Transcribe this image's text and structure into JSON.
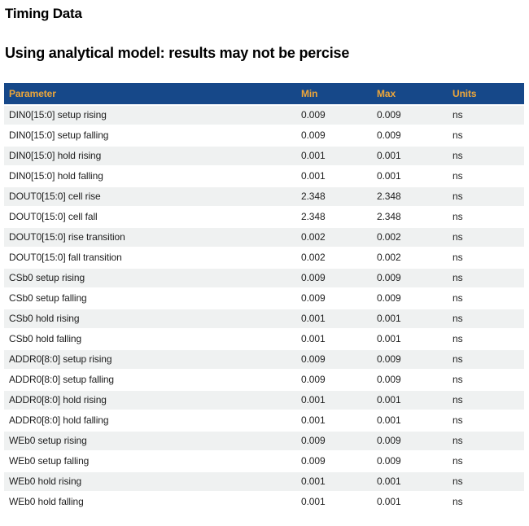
{
  "page": {
    "title": "Timing Data",
    "subtitle": "Using analytical model: results may not be percise"
  },
  "colors": {
    "header_bg": "#164889",
    "header_text": "#eda63a",
    "row_alt_bg": "#eff1f1",
    "body_text": "#1e1e1e"
  },
  "table": {
    "columns": [
      "Parameter",
      "Min",
      "Max",
      "Units"
    ],
    "rows": [
      {
        "parameter": "DIN0[15:0] setup rising",
        "min": "0.009",
        "max": "0.009",
        "units": "ns"
      },
      {
        "parameter": "DIN0[15:0] setup falling",
        "min": "0.009",
        "max": "0.009",
        "units": "ns"
      },
      {
        "parameter": "DIN0[15:0] hold rising",
        "min": "0.001",
        "max": "0.001",
        "units": "ns"
      },
      {
        "parameter": "DIN0[15:0] hold falling",
        "min": "0.001",
        "max": "0.001",
        "units": "ns"
      },
      {
        "parameter": "DOUT0[15:0] cell rise",
        "min": "2.348",
        "max": "2.348",
        "units": "ns"
      },
      {
        "parameter": "DOUT0[15:0] cell fall",
        "min": "2.348",
        "max": "2.348",
        "units": "ns"
      },
      {
        "parameter": "DOUT0[15:0] rise transition",
        "min": "0.002",
        "max": "0.002",
        "units": "ns"
      },
      {
        "parameter": "DOUT0[15:0] fall transition",
        "min": "0.002",
        "max": "0.002",
        "units": "ns"
      },
      {
        "parameter": "CSb0 setup rising",
        "min": "0.009",
        "max": "0.009",
        "units": "ns"
      },
      {
        "parameter": "CSb0 setup falling",
        "min": "0.009",
        "max": "0.009",
        "units": "ns"
      },
      {
        "parameter": "CSb0 hold rising",
        "min": "0.001",
        "max": "0.001",
        "units": "ns"
      },
      {
        "parameter": "CSb0 hold falling",
        "min": "0.001",
        "max": "0.001",
        "units": "ns"
      },
      {
        "parameter": "ADDR0[8:0] setup rising",
        "min": "0.009",
        "max": "0.009",
        "units": "ns"
      },
      {
        "parameter": "ADDR0[8:0] setup falling",
        "min": "0.009",
        "max": "0.009",
        "units": "ns"
      },
      {
        "parameter": "ADDR0[8:0] hold rising",
        "min": "0.001",
        "max": "0.001",
        "units": "ns"
      },
      {
        "parameter": "ADDR0[8:0] hold falling",
        "min": "0.001",
        "max": "0.001",
        "units": "ns"
      },
      {
        "parameter": "WEb0 setup rising",
        "min": "0.009",
        "max": "0.009",
        "units": "ns"
      },
      {
        "parameter": "WEb0 setup falling",
        "min": "0.009",
        "max": "0.009",
        "units": "ns"
      },
      {
        "parameter": "WEb0 hold rising",
        "min": "0.001",
        "max": "0.001",
        "units": "ns"
      },
      {
        "parameter": "WEb0 hold falling",
        "min": "0.001",
        "max": "0.001",
        "units": "ns"
      }
    ]
  }
}
